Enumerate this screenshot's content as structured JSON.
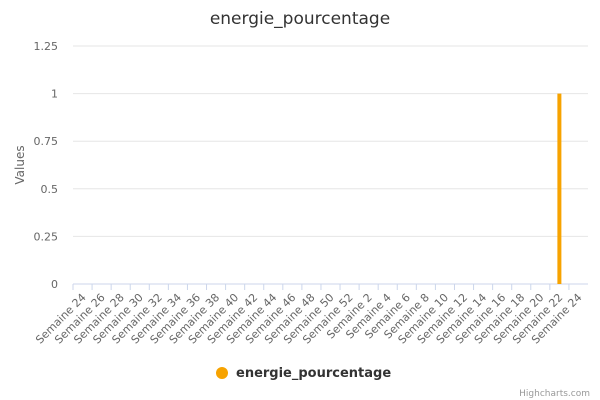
{
  "chart_data": {
    "type": "bar",
    "title": "energie_pourcentage",
    "xlabel": "",
    "ylabel": "Values",
    "ylim": [
      0,
      1.25
    ],
    "y_ticks": [
      "0",
      "0.25",
      "0.5",
      "0.75",
      "1",
      "1.25"
    ],
    "grid": true,
    "legend_position": "bottom",
    "categories": [
      "Semaine 24",
      "Semaine 26",
      "Semaine 28",
      "Semaine 30",
      "Semaine 32",
      "Semaine 34",
      "Semaine 36",
      "Semaine 38",
      "Semaine 40",
      "Semaine 42",
      "Semaine 44",
      "Semaine 46",
      "Semaine 48",
      "Semaine 50",
      "Semaine 52",
      "Semaine 2",
      "Semaine 4",
      "Semaine 6",
      "Semaine 8",
      "Semaine 10",
      "Semaine 12",
      "Semaine 14",
      "Semaine 16",
      "Semaine 18",
      "Semaine 20",
      "Semaine 22",
      "Semaine 24"
    ],
    "series": [
      {
        "name": "energie_pourcentage",
        "color": "#f7a300",
        "values": [
          0,
          0,
          0,
          0,
          0,
          0,
          0,
          0,
          0,
          0,
          0,
          0,
          0,
          0,
          0,
          0,
          0,
          0,
          0,
          0,
          0,
          0,
          0,
          0,
          0,
          1,
          0
        ]
      }
    ]
  },
  "credits": "Highcharts.com"
}
